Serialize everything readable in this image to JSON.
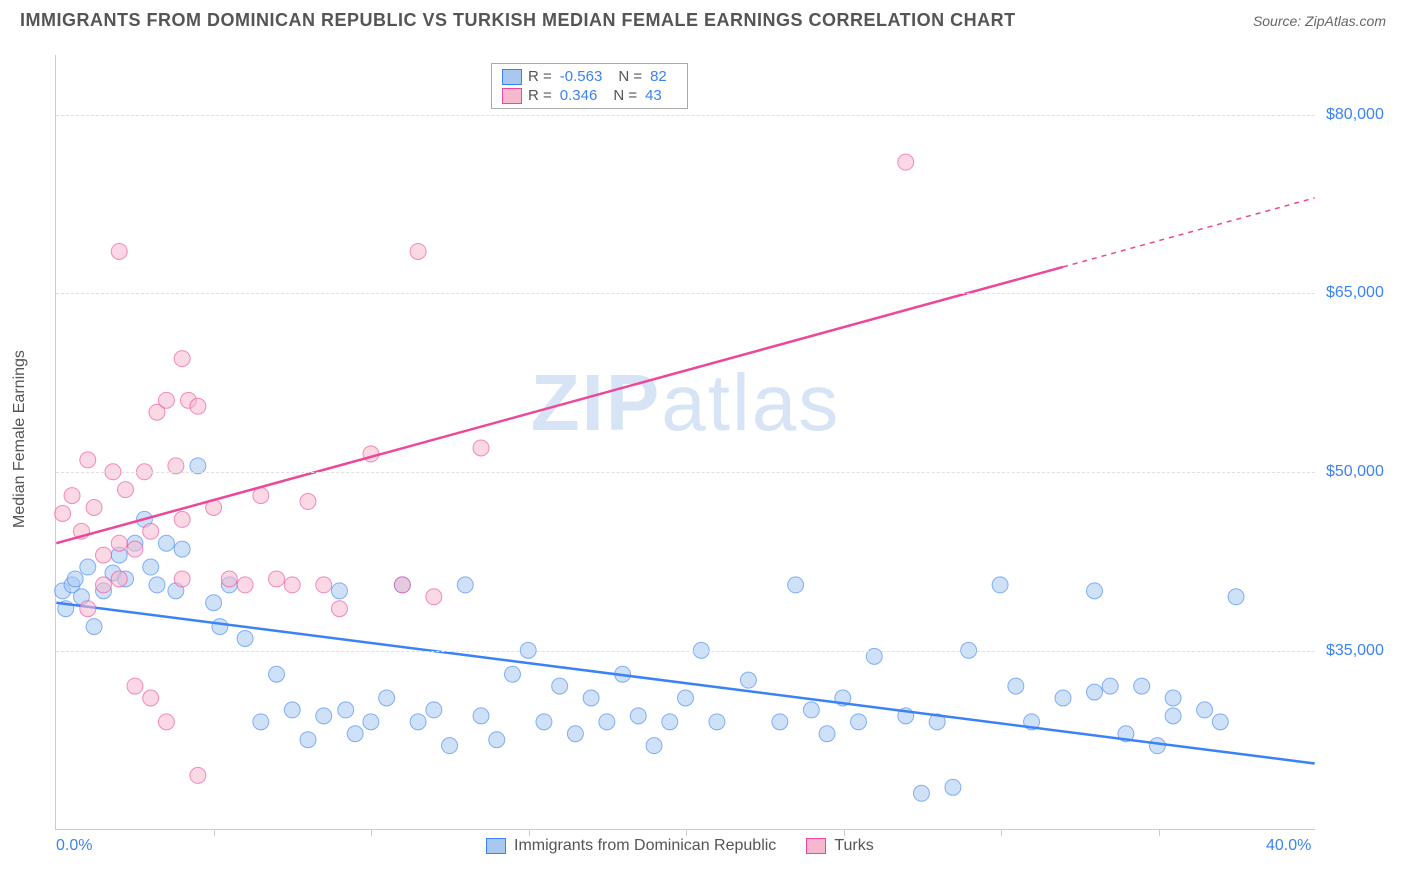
{
  "title": "IMMIGRANTS FROM DOMINICAN REPUBLIC VS TURKISH MEDIAN FEMALE EARNINGS CORRELATION CHART",
  "source_label": "Source:",
  "source_name": "ZipAtlas.com",
  "y_axis_label": "Median Female Earnings",
  "watermark_a": "ZIP",
  "watermark_b": "atlas",
  "chart": {
    "type": "scatter",
    "xlim": [
      0,
      40
    ],
    "ylim": [
      20000,
      85000
    ],
    "y_ticks": [
      35000,
      50000,
      65000,
      80000
    ],
    "y_tick_labels": [
      "$35,000",
      "$50,000",
      "$65,000",
      "$80,000"
    ],
    "x_min_label": "0.0%",
    "x_max_label": "40.0%",
    "x_minor_ticks": [
      5,
      10,
      15,
      20,
      25,
      30,
      35
    ],
    "grid_color": "#e0e0e0",
    "background_color": "#ffffff",
    "axis_color": "#cccccc",
    "tick_label_color": "#3b82f6",
    "marker_radius": 8,
    "marker_opacity": 0.55,
    "line_width": 2.5,
    "series": [
      {
        "name": "Immigrants from Dominican Republic",
        "short": "dominican",
        "color": "#3b82f6",
        "fill": "#a8c8f0",
        "R": "-0.563",
        "N": "82",
        "trend": {
          "x1": 0,
          "y1": 39000,
          "x2": 40,
          "y2": 25500,
          "dash_after_x": null
        },
        "points": [
          [
            0.2,
            40000
          ],
          [
            0.3,
            38500
          ],
          [
            0.5,
            40500
          ],
          [
            0.6,
            41000
          ],
          [
            0.8,
            39500
          ],
          [
            1.0,
            42000
          ],
          [
            1.2,
            37000
          ],
          [
            1.5,
            40000
          ],
          [
            1.8,
            41500
          ],
          [
            2.0,
            43000
          ],
          [
            2.2,
            41000
          ],
          [
            2.5,
            44000
          ],
          [
            2.8,
            46000
          ],
          [
            3.0,
            42000
          ],
          [
            3.2,
            40500
          ],
          [
            3.5,
            44000
          ],
          [
            3.8,
            40000
          ],
          [
            4.0,
            43500
          ],
          [
            4.5,
            50500
          ],
          [
            5.0,
            39000
          ],
          [
            5.2,
            37000
          ],
          [
            5.5,
            40500
          ],
          [
            6.0,
            36000
          ],
          [
            6.5,
            29000
          ],
          [
            7.0,
            33000
          ],
          [
            7.5,
            30000
          ],
          [
            8.0,
            27500
          ],
          [
            8.5,
            29500
          ],
          [
            9.0,
            40000
          ],
          [
            9.2,
            30000
          ],
          [
            9.5,
            28000
          ],
          [
            10.0,
            29000
          ],
          [
            10.5,
            31000
          ],
          [
            11.0,
            40500
          ],
          [
            11.5,
            29000
          ],
          [
            12.0,
            30000
          ],
          [
            12.5,
            27000
          ],
          [
            13.0,
            40500
          ],
          [
            13.5,
            29500
          ],
          [
            14.0,
            27500
          ],
          [
            14.5,
            33000
          ],
          [
            15.0,
            35000
          ],
          [
            15.5,
            29000
          ],
          [
            16.0,
            32000
          ],
          [
            16.5,
            28000
          ],
          [
            17.0,
            31000
          ],
          [
            17.5,
            29000
          ],
          [
            18.0,
            33000
          ],
          [
            18.5,
            29500
          ],
          [
            19.0,
            27000
          ],
          [
            19.5,
            29000
          ],
          [
            20.0,
            31000
          ],
          [
            20.5,
            35000
          ],
          [
            21.0,
            29000
          ],
          [
            22.0,
            32500
          ],
          [
            23.0,
            29000
          ],
          [
            23.5,
            40500
          ],
          [
            24.0,
            30000
          ],
          [
            24.5,
            28000
          ],
          [
            25.0,
            31000
          ],
          [
            25.5,
            29000
          ],
          [
            26.0,
            34500
          ],
          [
            27.0,
            29500
          ],
          [
            27.5,
            23000
          ],
          [
            28.0,
            29000
          ],
          [
            28.5,
            23500
          ],
          [
            29.0,
            35000
          ],
          [
            30.0,
            40500
          ],
          [
            30.5,
            32000
          ],
          [
            31.0,
            29000
          ],
          [
            32.0,
            31000
          ],
          [
            33.0,
            40000
          ],
          [
            33.5,
            32000
          ],
          [
            34.0,
            28000
          ],
          [
            34.5,
            32000
          ],
          [
            35.0,
            27000
          ],
          [
            35.5,
            31000
          ],
          [
            36.5,
            30000
          ],
          [
            37.0,
            29000
          ],
          [
            37.5,
            39500
          ],
          [
            35.5,
            29500
          ],
          [
            33.0,
            31500
          ]
        ]
      },
      {
        "name": "Turks",
        "short": "turks",
        "color": "#ec4899",
        "fill": "#f5b8ce",
        "R": "0.346",
        "N": "43",
        "trend": {
          "x1": 0,
          "y1": 44000,
          "x2": 40,
          "y2": 73000,
          "dash_after_x": 32
        },
        "points": [
          [
            0.2,
            46500
          ],
          [
            0.5,
            48000
          ],
          [
            0.8,
            45000
          ],
          [
            1.0,
            51000
          ],
          [
            1.2,
            47000
          ],
          [
            1.5,
            43000
          ],
          [
            1.8,
            50000
          ],
          [
            2.0,
            44000
          ],
          [
            2.2,
            48500
          ],
          [
            2.5,
            43500
          ],
          [
            2.8,
            50000
          ],
          [
            3.0,
            45000
          ],
          [
            3.2,
            55000
          ],
          [
            3.5,
            56000
          ],
          [
            3.8,
            50500
          ],
          [
            4.0,
            46000
          ],
          [
            4.2,
            56000
          ],
          [
            4.5,
            55500
          ],
          [
            1.0,
            38500
          ],
          [
            1.5,
            40500
          ],
          [
            2.0,
            41000
          ],
          [
            2.5,
            32000
          ],
          [
            3.0,
            31000
          ],
          [
            3.5,
            29000
          ],
          [
            4.0,
            41000
          ],
          [
            4.5,
            24500
          ],
          [
            2.0,
            68500
          ],
          [
            4.0,
            59500
          ],
          [
            5.0,
            47000
          ],
          [
            5.5,
            41000
          ],
          [
            6.0,
            40500
          ],
          [
            6.5,
            48000
          ],
          [
            7.0,
            41000
          ],
          [
            7.5,
            40500
          ],
          [
            8.0,
            47500
          ],
          [
            8.5,
            40500
          ],
          [
            9.0,
            38500
          ],
          [
            10.0,
            51500
          ],
          [
            11.0,
            40500
          ],
          [
            11.5,
            68500
          ],
          [
            13.5,
            52000
          ],
          [
            12.0,
            39500
          ],
          [
            27.0,
            76000
          ]
        ]
      }
    ]
  },
  "legend_labels": {
    "R": "R =",
    "N": "N ="
  },
  "footer_legend": [
    {
      "label": "Immigrants from Dominican Republic",
      "fill": "#a8c8f0",
      "border": "#3b82f6"
    },
    {
      "label": "Turks",
      "fill": "#f5b8ce",
      "border": "#ec4899"
    }
  ]
}
